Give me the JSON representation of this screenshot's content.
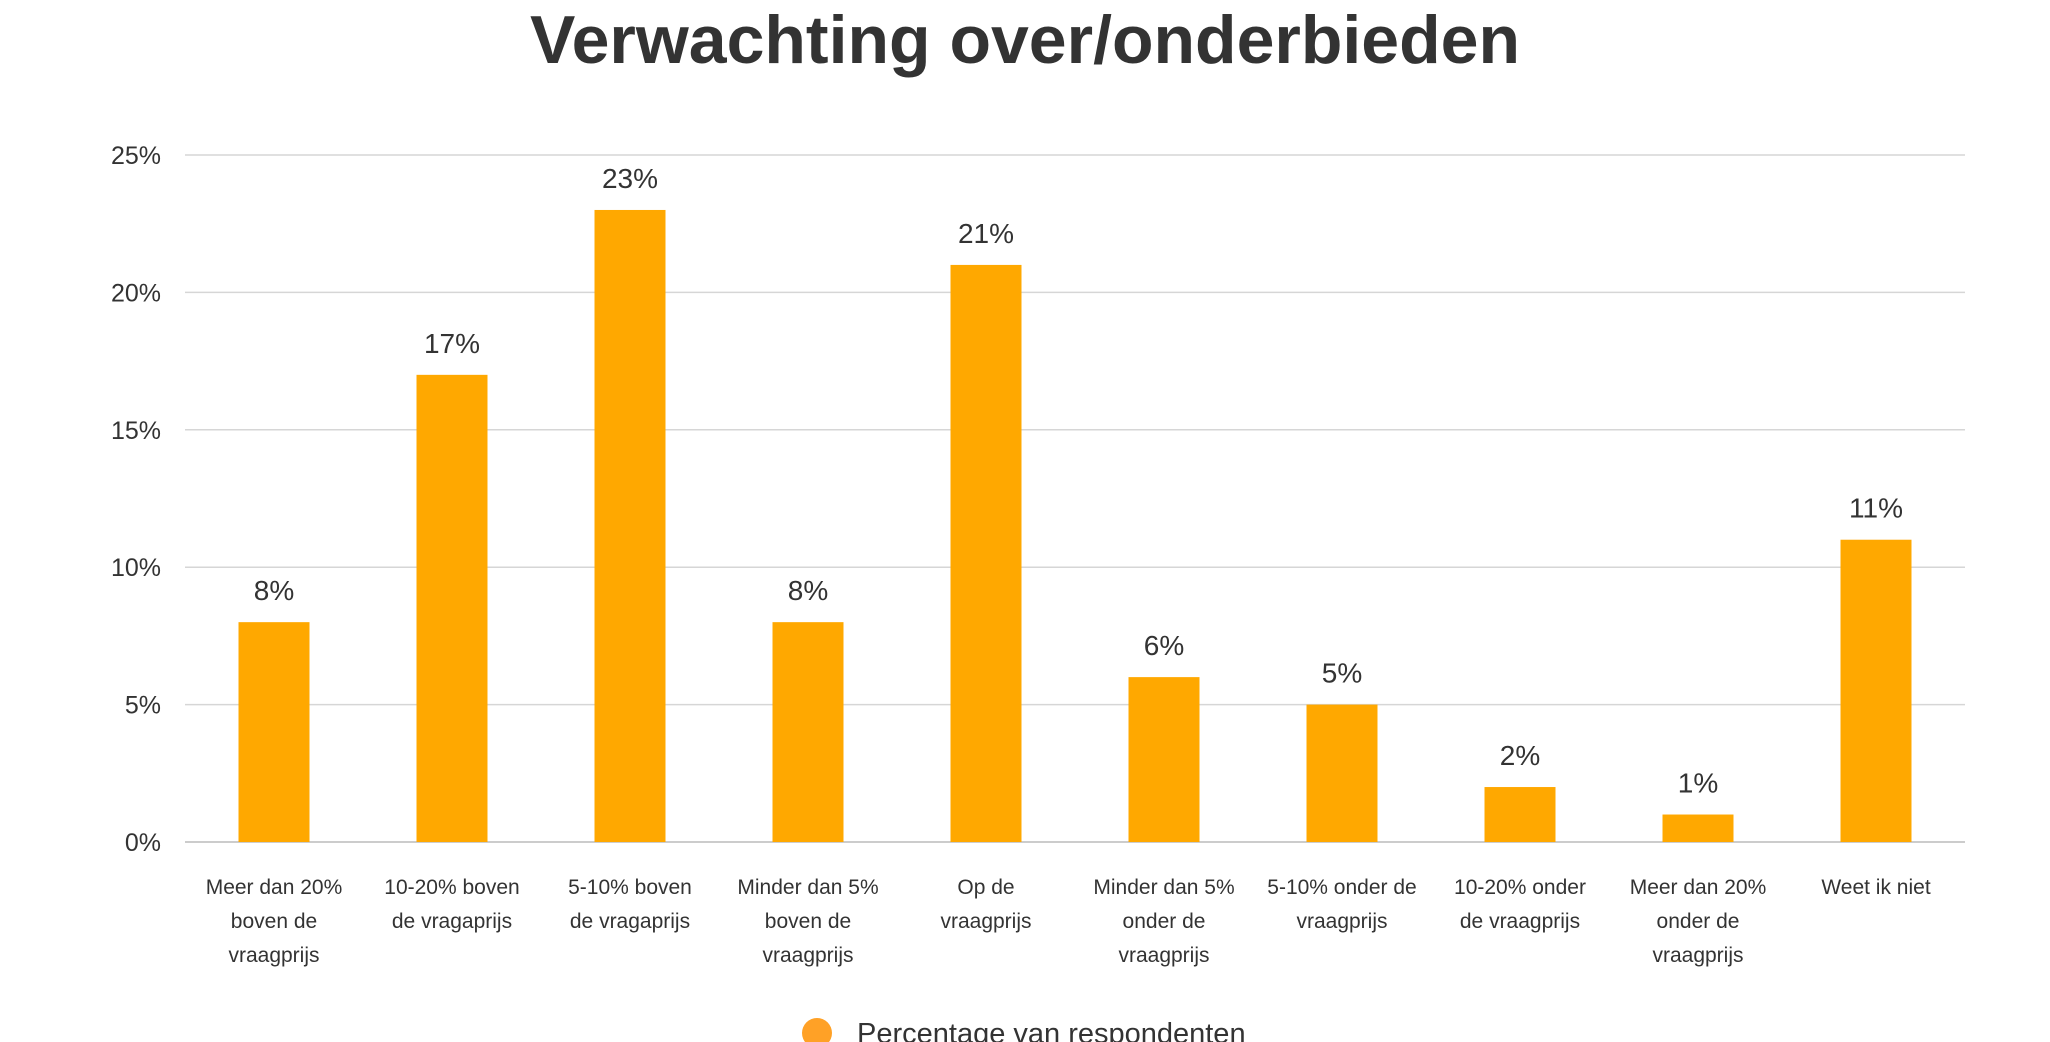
{
  "chart_data": {
    "type": "bar",
    "title": "Verwachting over/onderbieden",
    "categories": [
      "Meer dan 20% boven de vraagprijs",
      "10-20% boven de vragaprijs",
      "5-10% boven de vragaprijs",
      "Minder dan 5% boven de vraagprijs",
      "Op de vraagprijs",
      "Minder dan 5% onder de vraagprijs",
      "5-10% onder de vraagprijs",
      "10-20% onder de vraagprijs",
      "Meer dan 20% onder de vraagprijs",
      "Weet ik niet"
    ],
    "category_lines": [
      [
        "Meer dan 20%",
        "boven de",
        "vraagprijs"
      ],
      [
        "10-20% boven",
        "de vragaprijs"
      ],
      [
        "5-10% boven",
        "de vragaprijs"
      ],
      [
        "Minder dan 5%",
        "boven de",
        "vraagprijs"
      ],
      [
        "Op de",
        "vraagprijs"
      ],
      [
        "Minder dan 5%",
        "onder de",
        "vraagprijs"
      ],
      [
        "5-10% onder de",
        "vraagprijs"
      ],
      [
        "10-20% onder",
        "de vraagprijs"
      ],
      [
        "Meer dan 20%",
        "onder de",
        "vraagprijs"
      ],
      [
        "Weet ik niet"
      ]
    ],
    "series": [
      {
        "name": "Percentage van respondenten",
        "values": [
          8,
          17,
          23,
          8,
          21,
          6,
          5,
          2,
          1,
          11
        ],
        "color": "#FFA800"
      }
    ],
    "data_labels": [
      "8%",
      "17%",
      "23%",
      "8%",
      "21%",
      "6%",
      "5%",
      "2%",
      "1%",
      "11%"
    ],
    "y_ticks": [
      0,
      5,
      10,
      15,
      20,
      25
    ],
    "y_tick_labels": [
      "0%",
      "5%",
      "10%",
      "15%",
      "20%",
      "25%"
    ],
    "ylim": [
      0,
      25
    ],
    "xlabel": "",
    "ylabel": "",
    "grid": true,
    "legend_position": "bottom-center",
    "legend_marker_color": "#FFA126"
  }
}
